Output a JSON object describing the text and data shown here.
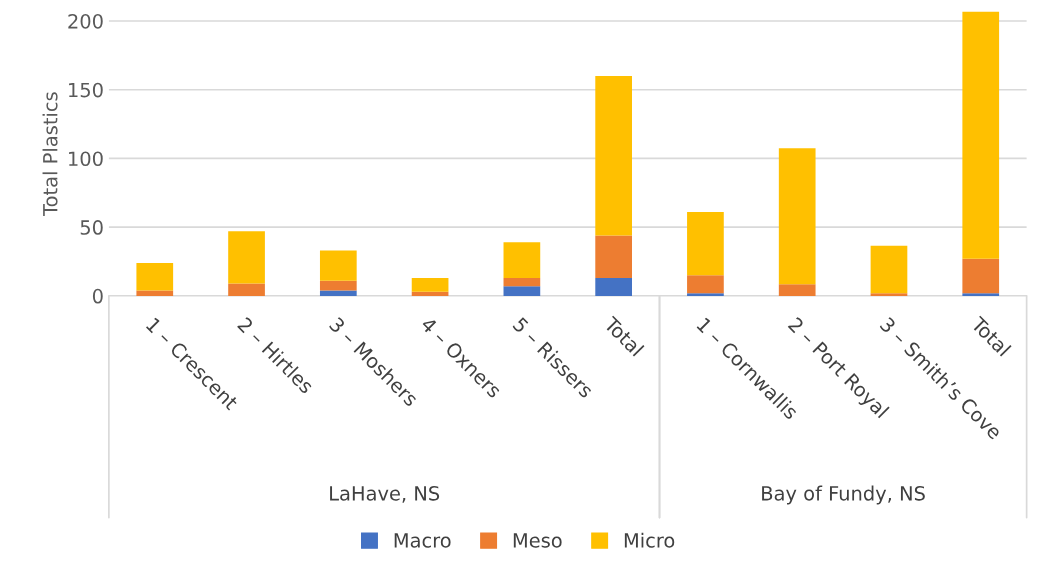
{
  "chart_data": {
    "type": "bar",
    "stacked": true,
    "ylabel": "Total Plastics",
    "categories": [
      "1 – Crescent",
      "2 – Hirtles",
      "3 – Moshers",
      "4 – Oxners",
      "5 – Rissers",
      "Total",
      "1 – Cornwallis",
      "2 – Port Royal",
      "3 – Smith’s Cove",
      "Total"
    ],
    "series": [
      {
        "name": "Macro",
        "color": "#4472c4",
        "values": [
          0,
          0,
          4,
          0,
          7,
          13,
          2,
          0,
          0,
          2
        ]
      },
      {
        "name": "Meso",
        "color": "#ed7d31",
        "values": [
          4,
          9,
          7,
          3,
          6,
          31,
          13,
          8.5,
          2,
          25
        ]
      },
      {
        "name": "Micro",
        "color": "#ffc000",
        "values": [
          20,
          38,
          22,
          10,
          26,
          116,
          46,
          99,
          34.5,
          180
        ]
      }
    ],
    "annotations": [
      "LaHave, NS",
      "Bay of Fundy, NS"
    ],
    "ylim": [
      0,
      207
    ],
    "yticks": [
      0,
      50,
      100,
      150,
      200
    ],
    "grid": "y",
    "legend": "bottom"
  }
}
